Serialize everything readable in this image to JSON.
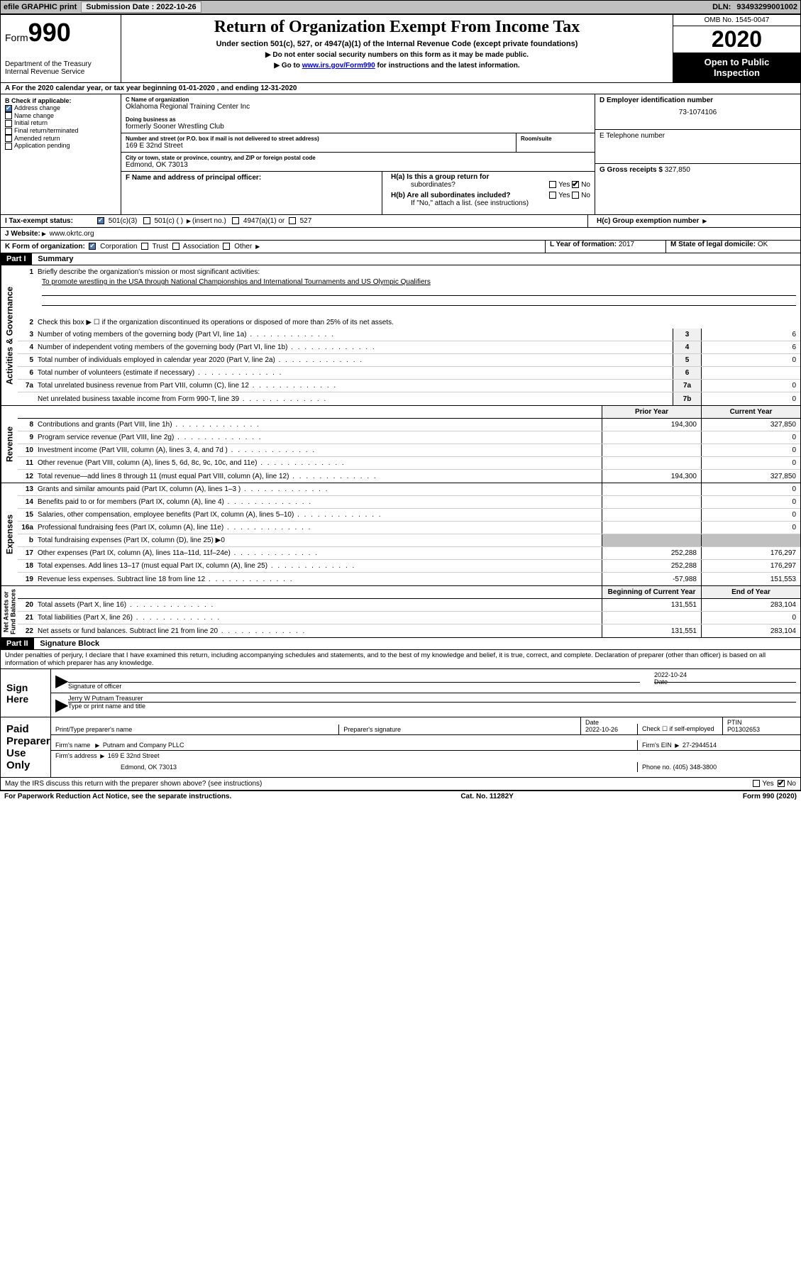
{
  "topbar": {
    "efile": "efile GRAPHIC print",
    "submission_label": "Submission Date :",
    "submission_date": "2022-10-26",
    "dln_label": "DLN:",
    "dln": "93493299001002"
  },
  "header": {
    "form_prefix": "Form",
    "form_number": "990",
    "dept": "Department of the Treasury\nInternal Revenue Service",
    "title": "Return of Organization Exempt From Income Tax",
    "subtitle": "Under section 501(c), 527, or 4947(a)(1) of the Internal Revenue Code (except private foundations)",
    "instr1": "Do not enter social security numbers on this form as it may be made public.",
    "instr2_pre": "Go to ",
    "instr2_link": "www.irs.gov/Form990",
    "instr2_post": " for instructions and the latest information.",
    "omb": "OMB No. 1545-0047",
    "year": "2020",
    "open_public": "Open to Public\nInspection"
  },
  "rowA": "A    For the 2020 calendar year, or tax year beginning 01-01-2020     , and ending 12-31-2020",
  "colB": {
    "label": "B Check if applicable:",
    "items": [
      "Address change",
      "Name change",
      "Initial return",
      "Final return/terminated",
      "Amended return",
      "Application pending"
    ],
    "checked_idx": 0
  },
  "colC": {
    "name_label": "C Name of organization",
    "name": "Oklahoma Regional Training Center Inc",
    "dba_label": "Doing business as",
    "dba": "formerly Sooner Wrestling Club",
    "addr_label": "Number and street (or P.O. box if mail is not delivered to street address)",
    "room_label": "Room/suite",
    "addr": "169 E 32nd Street",
    "city_label": "City or town, state or province, country, and ZIP or foreign postal code",
    "city": "Edmond, OK  73013",
    "officer_label": "F  Name and address of principal officer:"
  },
  "colD": {
    "ein_label": "D Employer identification number",
    "ein": "73-1074106",
    "phone_label": "E Telephone number",
    "gross_label": "G Gross receipts $",
    "gross": "327,850",
    "ha": "H(a)  Is this a group return for",
    "ha2": "subordinates?",
    "hb": "H(b)  Are all subordinates included?",
    "hb_note": "If \"No,\" attach a list. (see instructions)",
    "hc": "H(c)  Group exemption number",
    "yes": "Yes",
    "no": "No"
  },
  "rowI": {
    "label": "I   Tax-exempt status:",
    "opts": [
      "501(c)(3)",
      "501(c) (  )",
      "(insert no.)",
      "4947(a)(1) or",
      "527"
    ]
  },
  "rowJ": {
    "label": "J   Website:",
    "val": "www.okrtc.org"
  },
  "rowK": {
    "label": "K Form of organization:",
    "opts": [
      "Corporation",
      "Trust",
      "Association",
      "Other"
    ],
    "year_label": "L Year of formation:",
    "year": "2017",
    "state_label": "M State of legal domicile:",
    "state": "OK"
  },
  "part1": {
    "header": "Part I",
    "title": "Summary",
    "q1_label": "Briefly describe the organization's mission or most significant activities:",
    "q1_text": "To promote wrestling in the USA through National Championships and International Tournaments and US Olympic Qualifiers",
    "q2": "Check this box ▶ ☐  if the organization discontinued its operations or disposed of more than 25% of its net assets.",
    "lines_gov": [
      {
        "n": "3",
        "d": "Number of voting members of the governing body (Part VI, line 1a)",
        "b": "3",
        "v": "6"
      },
      {
        "n": "4",
        "d": "Number of independent voting members of the governing body (Part VI, line 1b)",
        "b": "4",
        "v": "6"
      },
      {
        "n": "5",
        "d": "Total number of individuals employed in calendar year 2020 (Part V, line 2a)",
        "b": "5",
        "v": "0"
      },
      {
        "n": "6",
        "d": "Total number of volunteers (estimate if necessary)",
        "b": "6",
        "v": ""
      },
      {
        "n": "7a",
        "d": "Total unrelated business revenue from Part VIII, column (C), line 12",
        "b": "7a",
        "v": "0"
      },
      {
        "n": "",
        "d": "Net unrelated business taxable income from Form 990-T, line 39",
        "b": "7b",
        "v": "0"
      }
    ],
    "prior_label": "Prior Year",
    "current_label": "Current Year",
    "lines_rev": [
      {
        "n": "8",
        "d": "Contributions and grants (Part VIII, line 1h)",
        "p": "194,300",
        "c": "327,850"
      },
      {
        "n": "9",
        "d": "Program service revenue (Part VIII, line 2g)",
        "p": "",
        "c": "0"
      },
      {
        "n": "10",
        "d": "Investment income (Part VIII, column (A), lines 3, 4, and 7d )",
        "p": "",
        "c": "0"
      },
      {
        "n": "11",
        "d": "Other revenue (Part VIII, column (A), lines 5, 6d, 8c, 9c, 10c, and 11e)",
        "p": "",
        "c": "0"
      },
      {
        "n": "12",
        "d": "Total revenue—add lines 8 through 11 (must equal Part VIII, column (A), line 12)",
        "p": "194,300",
        "c": "327,850"
      }
    ],
    "lines_exp": [
      {
        "n": "13",
        "d": "Grants and similar amounts paid (Part IX, column (A), lines 1–3 )",
        "p": "",
        "c": "0"
      },
      {
        "n": "14",
        "d": "Benefits paid to or for members (Part IX, column (A), line 4)",
        "p": "",
        "c": "0"
      },
      {
        "n": "15",
        "d": "Salaries, other compensation, employee benefits (Part IX, column (A), lines 5–10)",
        "p": "",
        "c": "0"
      },
      {
        "n": "16a",
        "d": "Professional fundraising fees (Part IX, column (A), line 11e)",
        "p": "",
        "c": "0"
      },
      {
        "n": "b",
        "d": "Total fundraising expenses (Part IX, column (D), line 25) ▶0",
        "p": "shaded",
        "c": "shaded",
        "small": true
      },
      {
        "n": "17",
        "d": "Other expenses (Part IX, column (A), lines 11a–11d, 11f–24e)",
        "p": "252,288",
        "c": "176,297"
      },
      {
        "n": "18",
        "d": "Total expenses. Add lines 13–17 (must equal Part IX, column (A), line 25)",
        "p": "252,288",
        "c": "176,297"
      },
      {
        "n": "19",
        "d": "Revenue less expenses. Subtract line 18 from line 12",
        "p": "-57,988",
        "c": "151,553"
      }
    ],
    "begin_label": "Beginning of Current Year",
    "end_label": "End of Year",
    "lines_net": [
      {
        "n": "20",
        "d": "Total assets (Part X, line 16)",
        "p": "131,551",
        "c": "283,104"
      },
      {
        "n": "21",
        "d": "Total liabilities (Part X, line 26)",
        "p": "",
        "c": "0"
      },
      {
        "n": "22",
        "d": "Net assets or fund balances. Subtract line 21 from line 20",
        "p": "131,551",
        "c": "283,104"
      }
    ],
    "sidebars": [
      "Activities & Governance",
      "Revenue",
      "Expenses",
      "Net Assets or\nFund Balances"
    ]
  },
  "part2": {
    "header": "Part II",
    "title": "Signature Block",
    "penalty": "Under penalties of perjury, I declare that I have examined this return, including accompanying schedules and statements, and to the best of my knowledge and belief, it is true, correct, and complete. Declaration of preparer (other than officer) is based on all information of which preparer has any knowledge.",
    "sign_here": "Sign Here",
    "sig_officer": "Signature of officer",
    "sig_date": "2022-10-24",
    "date_label": "Date",
    "officer_name": "Jerry W Putnam  Treasurer",
    "type_label": "Type or print name and title",
    "paid": "Paid Preparer Use Only",
    "prep_name_label": "Print/Type preparer's name",
    "prep_sig_label": "Preparer's signature",
    "prep_date": "2022-10-26",
    "check_self": "Check ☐ if self-employed",
    "ptin_label": "PTIN",
    "ptin": "P01302653",
    "firm_name_label": "Firm's name",
    "firm_name": "Putnam and Company PLLC",
    "firm_ein_label": "Firm's EIN",
    "firm_ein": "27-2944514",
    "firm_addr_label": "Firm's address",
    "firm_addr1": "169 E 32nd Street",
    "firm_addr2": "Edmond, OK  73013",
    "firm_phone_label": "Phone no.",
    "firm_phone": "(405) 348-3800",
    "discuss": "May the IRS discuss this return with the preparer shown above? (see instructions)"
  },
  "footer": {
    "left": "For Paperwork Reduction Act Notice, see the separate instructions.",
    "mid": "Cat. No. 11282Y",
    "right": "Form 990 (2020)"
  }
}
